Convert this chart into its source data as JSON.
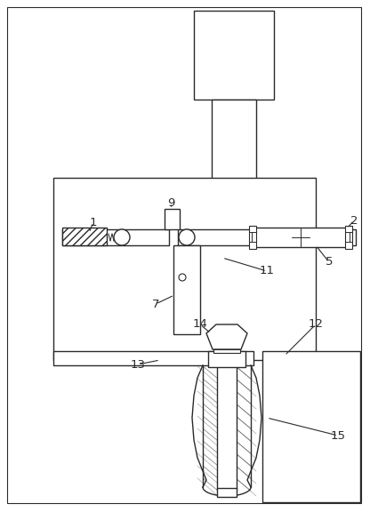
{
  "fig_width": 4.16,
  "fig_height": 5.76,
  "dpi": 100,
  "bg_color": "#ffffff",
  "lc": "#2a2a2a",
  "lw": 1.0
}
